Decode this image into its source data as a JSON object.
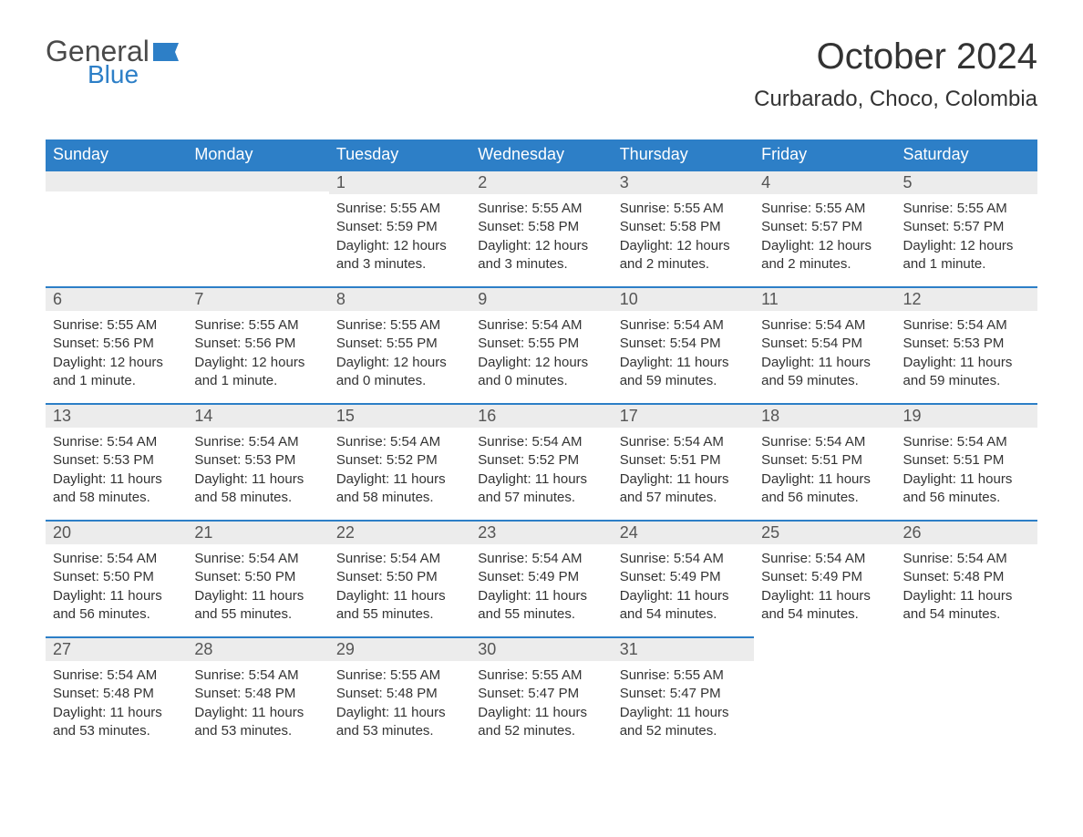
{
  "logo": {
    "word1": "General",
    "word2": "Blue",
    "accent_color": "#2d7fc7",
    "text_color": "#4a4a4a"
  },
  "title": "October 2024",
  "location": "Curbarado, Choco, Colombia",
  "colors": {
    "header_bg": "#2d7fc7",
    "header_text": "#ffffff",
    "day_hdr_bg": "#ececec",
    "day_hdr_border": "#2d7fc7",
    "body_bg": "#ffffff",
    "text": "#333333"
  },
  "fonts": {
    "family": "Arial",
    "title_size": 40,
    "location_size": 24,
    "th_size": 18,
    "daynum_size": 18,
    "body_size": 15
  },
  "weekdays": [
    "Sunday",
    "Monday",
    "Tuesday",
    "Wednesday",
    "Thursday",
    "Friday",
    "Saturday"
  ],
  "grid": {
    "rows": 5,
    "cols": 7,
    "first_day_col": 2,
    "last_day": 31
  },
  "days": {
    "1": {
      "sunrise": "5:55 AM",
      "sunset": "5:59 PM",
      "daylight": "12 hours and 3 minutes."
    },
    "2": {
      "sunrise": "5:55 AM",
      "sunset": "5:58 PM",
      "daylight": "12 hours and 3 minutes."
    },
    "3": {
      "sunrise": "5:55 AM",
      "sunset": "5:58 PM",
      "daylight": "12 hours and 2 minutes."
    },
    "4": {
      "sunrise": "5:55 AM",
      "sunset": "5:57 PM",
      "daylight": "12 hours and 2 minutes."
    },
    "5": {
      "sunrise": "5:55 AM",
      "sunset": "5:57 PM",
      "daylight": "12 hours and 1 minute."
    },
    "6": {
      "sunrise": "5:55 AM",
      "sunset": "5:56 PM",
      "daylight": "12 hours and 1 minute."
    },
    "7": {
      "sunrise": "5:55 AM",
      "sunset": "5:56 PM",
      "daylight": "12 hours and 1 minute."
    },
    "8": {
      "sunrise": "5:55 AM",
      "sunset": "5:55 PM",
      "daylight": "12 hours and 0 minutes."
    },
    "9": {
      "sunrise": "5:54 AM",
      "sunset": "5:55 PM",
      "daylight": "12 hours and 0 minutes."
    },
    "10": {
      "sunrise": "5:54 AM",
      "sunset": "5:54 PM",
      "daylight": "11 hours and 59 minutes."
    },
    "11": {
      "sunrise": "5:54 AM",
      "sunset": "5:54 PM",
      "daylight": "11 hours and 59 minutes."
    },
    "12": {
      "sunrise": "5:54 AM",
      "sunset": "5:53 PM",
      "daylight": "11 hours and 59 minutes."
    },
    "13": {
      "sunrise": "5:54 AM",
      "sunset": "5:53 PM",
      "daylight": "11 hours and 58 minutes."
    },
    "14": {
      "sunrise": "5:54 AM",
      "sunset": "5:53 PM",
      "daylight": "11 hours and 58 minutes."
    },
    "15": {
      "sunrise": "5:54 AM",
      "sunset": "5:52 PM",
      "daylight": "11 hours and 58 minutes."
    },
    "16": {
      "sunrise": "5:54 AM",
      "sunset": "5:52 PM",
      "daylight": "11 hours and 57 minutes."
    },
    "17": {
      "sunrise": "5:54 AM",
      "sunset": "5:51 PM",
      "daylight": "11 hours and 57 minutes."
    },
    "18": {
      "sunrise": "5:54 AM",
      "sunset": "5:51 PM",
      "daylight": "11 hours and 56 minutes."
    },
    "19": {
      "sunrise": "5:54 AM",
      "sunset": "5:51 PM",
      "daylight": "11 hours and 56 minutes."
    },
    "20": {
      "sunrise": "5:54 AM",
      "sunset": "5:50 PM",
      "daylight": "11 hours and 56 minutes."
    },
    "21": {
      "sunrise": "5:54 AM",
      "sunset": "5:50 PM",
      "daylight": "11 hours and 55 minutes."
    },
    "22": {
      "sunrise": "5:54 AM",
      "sunset": "5:50 PM",
      "daylight": "11 hours and 55 minutes."
    },
    "23": {
      "sunrise": "5:54 AM",
      "sunset": "5:49 PM",
      "daylight": "11 hours and 55 minutes."
    },
    "24": {
      "sunrise": "5:54 AM",
      "sunset": "5:49 PM",
      "daylight": "11 hours and 54 minutes."
    },
    "25": {
      "sunrise": "5:54 AM",
      "sunset": "5:49 PM",
      "daylight": "11 hours and 54 minutes."
    },
    "26": {
      "sunrise": "5:54 AM",
      "sunset": "5:48 PM",
      "daylight": "11 hours and 54 minutes."
    },
    "27": {
      "sunrise": "5:54 AM",
      "sunset": "5:48 PM",
      "daylight": "11 hours and 53 minutes."
    },
    "28": {
      "sunrise": "5:54 AM",
      "sunset": "5:48 PM",
      "daylight": "11 hours and 53 minutes."
    },
    "29": {
      "sunrise": "5:55 AM",
      "sunset": "5:48 PM",
      "daylight": "11 hours and 53 minutes."
    },
    "30": {
      "sunrise": "5:55 AM",
      "sunset": "5:47 PM",
      "daylight": "11 hours and 52 minutes."
    },
    "31": {
      "sunrise": "5:55 AM",
      "sunset": "5:47 PM",
      "daylight": "11 hours and 52 minutes."
    }
  },
  "labels": {
    "sunrise": "Sunrise:",
    "sunset": "Sunset:",
    "daylight": "Daylight:"
  }
}
